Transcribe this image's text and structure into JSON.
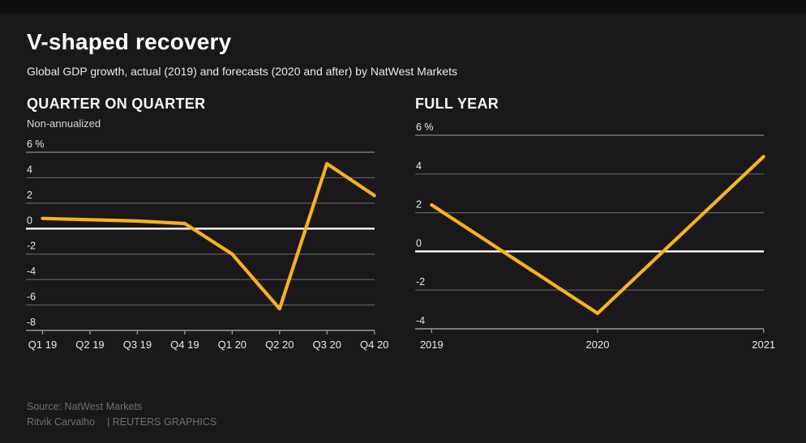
{
  "page": {
    "title": "V-shaped recovery",
    "subtitle": "Global GDP growth, actual (2019) and forecasts (2020 and after) by NatWest Markets",
    "footer": {
      "source": "Source: NatWest Markets",
      "byline": "Ritvik Carvalho",
      "credit": "| REUTERS GRAPHICS"
    }
  },
  "colors": {
    "background": "#1a181b",
    "top_bar": "#0e0d0f",
    "line": "#F5B31B",
    "grid": "#5f5f5f",
    "grid_top": "#848484",
    "zero_line": "#ffffff",
    "axis": "#9a9a9a",
    "label": "#e9e9e9",
    "muted": "#716e72"
  },
  "chart_data": [
    {
      "type": "line",
      "title": "QUARTER ON QUARTER",
      "subtitle": "Non-annualized",
      "unit_label": "6 %",
      "categories": [
        "Q1 19",
        "Q2 19",
        "Q3 19",
        "Q4 19",
        "Q1 20",
        "Q2 20",
        "Q3 20",
        "Q4 20"
      ],
      "values": [
        0.8,
        0.7,
        0.6,
        0.4,
        -2.0,
        -6.3,
        5.1,
        2.6
      ],
      "ylim": [
        -8,
        6
      ],
      "yticks": [
        6,
        4,
        2,
        0,
        -2,
        -4,
        -6,
        -8
      ],
      "grid": true,
      "legend": false
    },
    {
      "type": "line",
      "title": "FULL YEAR",
      "subtitle": "",
      "unit_label": "6 %",
      "categories": [
        "2019",
        "2020",
        "2021"
      ],
      "values": [
        2.4,
        -3.2,
        4.9
      ],
      "ylim": [
        -4,
        6
      ],
      "yticks": [
        6,
        4,
        2,
        0,
        -2,
        -4
      ],
      "grid": true,
      "legend": false
    }
  ]
}
